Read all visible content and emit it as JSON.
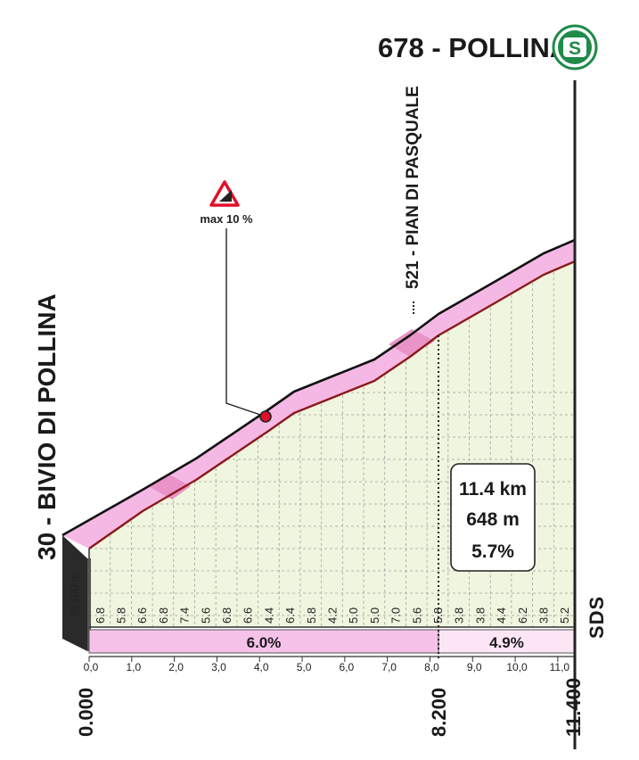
{
  "summit": {
    "label": "678 - POLLINA",
    "badge_icon": "sprint-badge-S-icon",
    "badge_letter": "S"
  },
  "start": {
    "label": "30 - BIVIO DI POLLINA"
  },
  "intermediate": {
    "label": "521 - PIAN DI PASQUALE"
  },
  "max_gradient": {
    "label": "max 10 %",
    "icon": "steep-slope-warning-icon"
  },
  "stats": {
    "distance": "11.4 km",
    "climb": "648 m",
    "avg_gradient": "5.7%"
  },
  "scale_note": "% 500 m",
  "brand": "SDS",
  "colors": {
    "profile_fill": "#f0f5df",
    "road_band": "#f5b8e4",
    "road_band_steep": "#e993c8",
    "road_edge": "#8a1a1a",
    "grid": "#9aa0a0",
    "summary_bar_1": "#f7c2ea",
    "summary_bar_2": "#fce6f6",
    "marker": "#e0102a"
  },
  "chart_data": {
    "type": "area",
    "x_unit": "km",
    "xlim": [
      0,
      11.4
    ],
    "km_ticks": [
      "0,0",
      "1,0",
      "2,0",
      "3,0",
      "4,0",
      "5,0",
      "6,0",
      "7,0",
      "8,0",
      "9,0",
      "10,0",
      "11,0"
    ],
    "x_bottom_labels": [
      "0.000",
      "8.200",
      "11.400"
    ],
    "elevation": {
      "start": 30,
      "intermediate": 521,
      "end": 678
    },
    "segment_gradients": [
      "6.8",
      "5.8",
      "6.6",
      "6.8",
      "7.4",
      "5.6",
      "6.8",
      "6.6",
      "4.4",
      "6.4",
      "5.8",
      "4.2",
      "5.0",
      "5.0",
      "7.0",
      "5.6",
      "5.8",
      "3.8",
      "3.8",
      "4.4",
      "6.2",
      "3.8",
      "5.2"
    ],
    "summary": [
      {
        "from_km": 0,
        "to_km": 8.2,
        "gradient": "6.0%"
      },
      {
        "from_km": 8.2,
        "to_km": 11.4,
        "gradient": "4.9%"
      }
    ]
  }
}
